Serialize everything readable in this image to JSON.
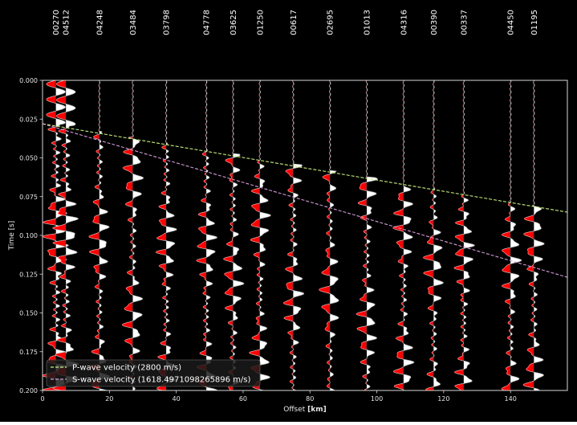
{
  "chart_data": {
    "type": "seismic-section",
    "xlabel_main": "Offset ",
    "xlabel_unit": "[km]",
    "ylabel": "Time [s]",
    "xlim": [
      0,
      157
    ],
    "ylim": [
      0.2,
      0.0
    ],
    "xticks": [
      "0",
      "20",
      "40",
      "60",
      "80",
      "100",
      "120",
      "140"
    ],
    "xtick_values": [
      0,
      20,
      40,
      60,
      80,
      100,
      120,
      140
    ],
    "yticks": [
      "0.000",
      "0.025",
      "0.050",
      "0.075",
      "0.100",
      "0.125",
      "0.150",
      "0.175",
      "0.200"
    ],
    "ytick_values": [
      0.0,
      0.025,
      0.05,
      0.075,
      0.1,
      0.125,
      0.15,
      0.175,
      0.2
    ],
    "traces": [
      {
        "station": "00270",
        "offset": 4.0
      },
      {
        "station": "04512",
        "offset": 7.0
      },
      {
        "station": "04248",
        "offset": 17.0
      },
      {
        "station": "03484",
        "offset": 27.0
      },
      {
        "station": "03798",
        "offset": 37.0
      },
      {
        "station": "04778",
        "offset": 49.0
      },
      {
        "station": "03625",
        "offset": 57.0
      },
      {
        "station": "01250",
        "offset": 65.0
      },
      {
        "station": "00617",
        "offset": 75.0
      },
      {
        "station": "02695",
        "offset": 86.0
      },
      {
        "station": "01013",
        "offset": 97.0
      },
      {
        "station": "04316",
        "offset": 108.0
      },
      {
        "station": "00390",
        "offset": 117.0
      },
      {
        "station": "00337",
        "offset": 126.0
      },
      {
        "station": "04450",
        "offset": 140.0
      },
      {
        "station": "01195",
        "offset": 147.0
      }
    ],
    "lines": [
      {
        "label": "P-wave velocity (2800 m/s)",
        "color": "#c8f07a",
        "x": [
          0,
          157
        ],
        "y": [
          0.028,
          0.085
        ]
      },
      {
        "label": "S-wave velocity (1618.4971098265896 m/s)",
        "color": "#d49bd8",
        "x": [
          0,
          157
        ],
        "y": [
          0.028,
          0.127
        ]
      }
    ],
    "legend_position": "lower-left",
    "fill_colors": {
      "positive": "#ffffff",
      "negative": "#ff0000"
    },
    "background": "#000000"
  }
}
